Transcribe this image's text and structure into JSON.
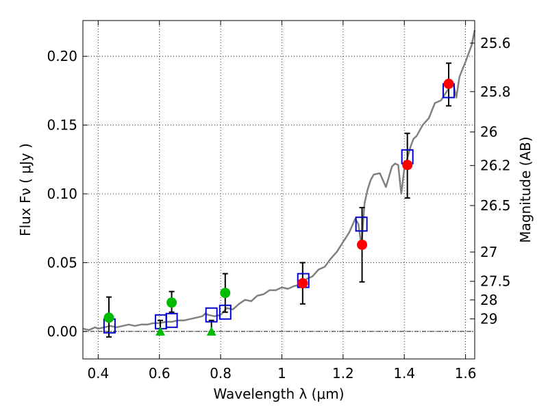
{
  "chart_data": {
    "type": "scatter",
    "xlabel": "Wavelength  λ (μm)",
    "ylabel": "Flux  Fν  ( μJy )",
    "y2label": "Magnitude (AB)",
    "xlim": [
      0.35,
      1.63
    ],
    "ylim": [
      -0.02,
      0.226
    ],
    "x_ticks": [
      0.4,
      0.6,
      0.8,
      1.0,
      1.2,
      1.4,
      1.6
    ],
    "x_tick_labels": [
      "0.4",
      "0.6",
      "0.8",
      "1",
      "1.2",
      "1.4",
      "1.6"
    ],
    "y_ticks": [
      0.0,
      0.05,
      0.1,
      0.15,
      0.2
    ],
    "y_tick_labels": [
      "0.00",
      "0.05",
      "0.10",
      "0.15",
      "0.20"
    ],
    "right_axis_ticks": [
      {
        "flux": 0.2096,
        "label": "25.6"
      },
      {
        "flux": 0.1743,
        "label": "25.8"
      },
      {
        "flux": 0.145,
        "label": "26"
      },
      {
        "flux": 0.1206,
        "label": "26.2"
      },
      {
        "flux": 0.0915,
        "label": "26.5"
      },
      {
        "flux": 0.0577,
        "label": "27"
      },
      {
        "flux": 0.0364,
        "label": "27.5"
      },
      {
        "flux": 0.0229,
        "label": "28"
      },
      {
        "flux": 0.0091,
        "label": "29"
      }
    ],
    "grid": true,
    "zero_line": true,
    "colors": {
      "spectrum": "#808080",
      "model_box": "#0000cc",
      "detection": "#ff0000",
      "weak_detection": "#00bb00",
      "errorbar": "#000000"
    },
    "spectrum": {
      "x": [
        0.35,
        0.37,
        0.39,
        0.4,
        0.42,
        0.44,
        0.46,
        0.48,
        0.5,
        0.52,
        0.54,
        0.56,
        0.58,
        0.6,
        0.62,
        0.64,
        0.66,
        0.68,
        0.7,
        0.72,
        0.74,
        0.75,
        0.76,
        0.78,
        0.8,
        0.82,
        0.84,
        0.86,
        0.88,
        0.9,
        0.92,
        0.94,
        0.96,
        0.98,
        1.0,
        1.02,
        1.04,
        1.06,
        1.08,
        1.1,
        1.12,
        1.14,
        1.16,
        1.18,
        1.2,
        1.22,
        1.24,
        1.25,
        1.26,
        1.27,
        1.28,
        1.29,
        1.3,
        1.32,
        1.34,
        1.36,
        1.37,
        1.38,
        1.39,
        1.4,
        1.42,
        1.43,
        1.44,
        1.46,
        1.48,
        1.5,
        1.52,
        1.54,
        1.56,
        1.57,
        1.58,
        1.6,
        1.62,
        1.63
      ],
      "y": [
        0.002,
        0.001,
        0.003,
        0.002,
        0.003,
        0.004,
        0.003,
        0.004,
        0.005,
        0.004,
        0.005,
        0.005,
        0.006,
        0.006,
        0.007,
        0.007,
        0.008,
        0.008,
        0.009,
        0.01,
        0.011,
        0.013,
        0.012,
        0.011,
        0.012,
        0.017,
        0.016,
        0.02,
        0.023,
        0.022,
        0.026,
        0.027,
        0.03,
        0.03,
        0.032,
        0.031,
        0.033,
        0.034,
        0.038,
        0.04,
        0.045,
        0.047,
        0.053,
        0.058,
        0.065,
        0.072,
        0.082,
        0.078,
        0.062,
        0.093,
        0.103,
        0.11,
        0.114,
        0.115,
        0.105,
        0.12,
        0.122,
        0.121,
        0.1,
        0.118,
        0.134,
        0.14,
        0.142,
        0.15,
        0.155,
        0.166,
        0.168,
        0.175,
        0.18,
        0.17,
        0.185,
        0.196,
        0.208,
        0.219
      ]
    },
    "model_boxes": [
      {
        "x": 0.437,
        "y": 0.004
      },
      {
        "x": 0.605,
        "y": 0.007
      },
      {
        "x": 0.64,
        "y": 0.008
      },
      {
        "x": 0.77,
        "y": 0.012
      },
      {
        "x": 0.815,
        "y": 0.014
      },
      {
        "x": 1.07,
        "y": 0.037
      },
      {
        "x": 1.26,
        "y": 0.078
      },
      {
        "x": 1.41,
        "y": 0.127
      },
      {
        "x": 1.545,
        "y": 0.175
      }
    ],
    "detections": [
      {
        "x": 1.068,
        "y": 0.035,
        "err_lo": 0.02,
        "err_hi": 0.05
      },
      {
        "x": 1.262,
        "y": 0.063,
        "err_lo": 0.036,
        "err_hi": 0.09
      },
      {
        "x": 1.41,
        "y": 0.121,
        "err_lo": 0.097,
        "err_hi": 0.144
      },
      {
        "x": 1.545,
        "y": 0.18,
        "err_lo": 0.164,
        "err_hi": 0.195
      }
    ],
    "weak_detections": [
      {
        "x": 0.435,
        "y": 0.01,
        "err_lo": -0.004,
        "err_hi": 0.025
      },
      {
        "x": 0.64,
        "y": 0.021,
        "err_lo": 0.014,
        "err_hi": 0.029
      },
      {
        "x": 0.815,
        "y": 0.028,
        "err_lo": 0.014,
        "err_hi": 0.042
      }
    ],
    "upper_limits": [
      {
        "x": 0.603,
        "y": 0.0,
        "err_hi": 0.008
      },
      {
        "x": 0.77,
        "y": 0.0,
        "err_hi": 0.008
      }
    ]
  }
}
